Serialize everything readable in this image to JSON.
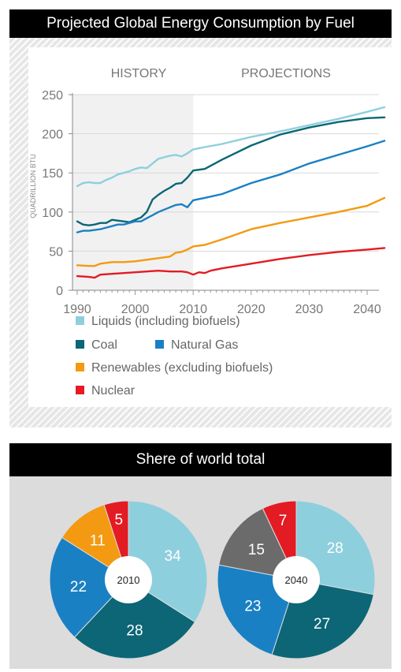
{
  "chart_title": "Projected Global Energy Consumption by Fuel",
  "share_title": "Shere of world total",
  "colors": {
    "liquids": "#8ecfdd",
    "coal": "#0c6676",
    "natural_gas": "#1a80c4",
    "renewables": "#f39a12",
    "nuclear": "#e31b23",
    "other": "#6b6b6b"
  },
  "chart_data": [
    {
      "type": "line",
      "title": "Projected Global Energy Consumption by Fuel",
      "ylabel": "QUADRILLION BTU",
      "ylim": [
        0,
        250
      ],
      "xlim": [
        1990,
        2040
      ],
      "x_ticks": [
        "1990",
        "2000",
        "2010",
        "2020",
        "2030",
        "2040"
      ],
      "y_ticks": [
        "0",
        "50",
        "100",
        "150",
        "200",
        "250"
      ],
      "region_labels": {
        "history": "HISTORY",
        "projections": "PROJECTIONS"
      },
      "history_end": 2010,
      "series": [
        {
          "name": "Liquids (including biofuels)",
          "key": "liquids",
          "points": [
            [
              1990,
              133
            ],
            [
              1991,
              137
            ],
            [
              1992,
              138
            ],
            [
              1993,
              137
            ],
            [
              1994,
              137
            ],
            [
              1995,
              141
            ],
            [
              1996,
              144
            ],
            [
              1997,
              148
            ],
            [
              1998,
              150
            ],
            [
              1999,
              152
            ],
            [
              2000,
              155
            ],
            [
              2001,
              157
            ],
            [
              2002,
              156
            ],
            [
              2003,
              162
            ],
            [
              2004,
              168
            ],
            [
              2005,
              170
            ],
            [
              2006,
              172
            ],
            [
              2007,
              173
            ],
            [
              2008,
              171
            ],
            [
              2009,
              175
            ],
            [
              2010,
              180
            ],
            [
              2012,
              183
            ],
            [
              2015,
              187
            ],
            [
              2020,
              196
            ],
            [
              2025,
              203
            ],
            [
              2030,
              211
            ],
            [
              2035,
              219
            ],
            [
              2040,
              228
            ],
            [
              2043,
              234
            ]
          ]
        },
        {
          "name": "Coal",
          "key": "coal",
          "points": [
            [
              1990,
              88
            ],
            [
              1991,
              84
            ],
            [
              1992,
              83
            ],
            [
              1993,
              84
            ],
            [
              1994,
              86
            ],
            [
              1995,
              86
            ],
            [
              1996,
              90
            ],
            [
              1997,
              89
            ],
            [
              1998,
              88
            ],
            [
              1999,
              87
            ],
            [
              2000,
              90
            ],
            [
              2001,
              93
            ],
            [
              2002,
              100
            ],
            [
              2003,
              116
            ],
            [
              2004,
              122
            ],
            [
              2005,
              127
            ],
            [
              2006,
              131
            ],
            [
              2007,
              136
            ],
            [
              2008,
              137
            ],
            [
              2009,
              144
            ],
            [
              2010,
              153
            ],
            [
              2012,
              155
            ],
            [
              2015,
              167
            ],
            [
              2020,
              185
            ],
            [
              2025,
              199
            ],
            [
              2030,
              208
            ],
            [
              2035,
              215
            ],
            [
              2040,
              220
            ],
            [
              2043,
              221
            ]
          ]
        },
        {
          "name": "Natural Gas",
          "key": "natural_gas",
          "points": [
            [
              1990,
              74
            ],
            [
              1991,
              76
            ],
            [
              1992,
              76
            ],
            [
              1993,
              77
            ],
            [
              1994,
              78
            ],
            [
              1995,
              80
            ],
            [
              1996,
              82
            ],
            [
              1997,
              84
            ],
            [
              1998,
              84
            ],
            [
              1999,
              86
            ],
            [
              2000,
              88
            ],
            [
              2001,
              88
            ],
            [
              2002,
              92
            ],
            [
              2003,
              96
            ],
            [
              2004,
              100
            ],
            [
              2005,
              103
            ],
            [
              2006,
              106
            ],
            [
              2007,
              109
            ],
            [
              2008,
              110
            ],
            [
              2009,
              106
            ],
            [
              2010,
              115
            ],
            [
              2012,
              118
            ],
            [
              2015,
              123
            ],
            [
              2020,
              137
            ],
            [
              2025,
              148
            ],
            [
              2030,
              162
            ],
            [
              2035,
              173
            ],
            [
              2040,
              184
            ],
            [
              2043,
              191
            ]
          ]
        },
        {
          "name": "Renewables (excluding biofuels)",
          "key": "renewables",
          "points": [
            [
              1990,
              32
            ],
            [
              1992,
              31
            ],
            [
              1993,
              31
            ],
            [
              1994,
              34
            ],
            [
              1996,
              36
            ],
            [
              1998,
              36
            ],
            [
              2000,
              37
            ],
            [
              2002,
              39
            ],
            [
              2004,
              41
            ],
            [
              2006,
              43
            ],
            [
              2007,
              48
            ],
            [
              2008,
              49
            ],
            [
              2009,
              52
            ],
            [
              2010,
              56
            ],
            [
              2012,
              58
            ],
            [
              2015,
              65
            ],
            [
              2020,
              78
            ],
            [
              2025,
              86
            ],
            [
              2030,
              93
            ],
            [
              2035,
              100
            ],
            [
              2040,
              108
            ],
            [
              2043,
              118
            ]
          ]
        },
        {
          "name": "Nuclear",
          "key": "nuclear",
          "points": [
            [
              1990,
              18
            ],
            [
              1992,
              17
            ],
            [
              1993,
              16
            ],
            [
              1994,
              20
            ],
            [
              1996,
              21
            ],
            [
              1998,
              22
            ],
            [
              2000,
              23
            ],
            [
              2002,
              24
            ],
            [
              2004,
              25
            ],
            [
              2006,
              24
            ],
            [
              2008,
              24
            ],
            [
              2009,
              23
            ],
            [
              2010,
              20
            ],
            [
              2011,
              23
            ],
            [
              2012,
              22
            ],
            [
              2013,
              25
            ],
            [
              2015,
              28
            ],
            [
              2020,
              34
            ],
            [
              2025,
              40
            ],
            [
              2030,
              45
            ],
            [
              2035,
              49
            ],
            [
              2040,
              52
            ],
            [
              2043,
              54
            ]
          ]
        }
      ]
    },
    {
      "type": "pie",
      "center_label": "2010",
      "slices": [
        {
          "key": "liquids",
          "value": 34,
          "label": "34"
        },
        {
          "key": "coal",
          "value": 28,
          "label": "28"
        },
        {
          "key": "natural_gas",
          "value": 22,
          "label": "22"
        },
        {
          "key": "renewables",
          "value": 11,
          "label": "11"
        },
        {
          "key": "nuclear",
          "value": 5,
          "label": "5"
        }
      ]
    },
    {
      "type": "pie",
      "center_label": "2040",
      "slices": [
        {
          "key": "liquids",
          "value": 28,
          "label": "28"
        },
        {
          "key": "coal",
          "value": 27,
          "label": "27"
        },
        {
          "key": "natural_gas",
          "value": 23,
          "label": "23"
        },
        {
          "key": "other",
          "value": 15,
          "label": "15"
        },
        {
          "key": "nuclear",
          "value": 7,
          "label": "7"
        }
      ]
    }
  ]
}
